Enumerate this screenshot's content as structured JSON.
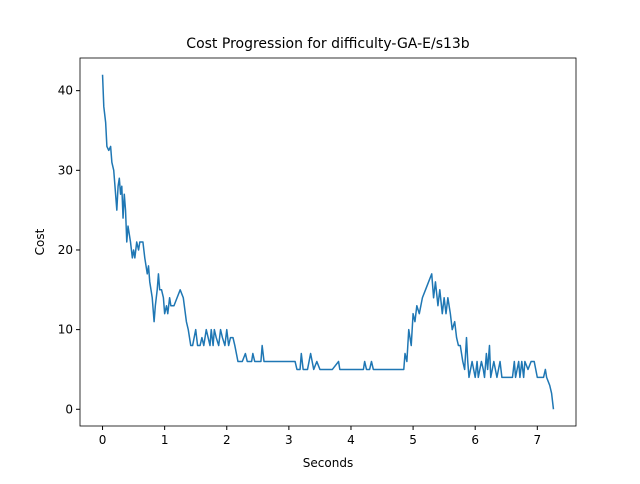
{
  "chart_data": {
    "type": "line",
    "title": "Cost Progression for difficulty-GA-E/s13b",
    "x_label": "Seconds",
    "y_label": "Cost",
    "x": [
      0,
      0.02,
      0.05,
      0.07,
      0.1,
      0.13,
      0.15,
      0.18,
      0.2,
      0.23,
      0.25,
      0.27,
      0.29,
      0.31,
      0.33,
      0.35,
      0.37,
      0.39,
      0.41,
      0.43,
      0.45,
      0.48,
      0.5,
      0.52,
      0.55,
      0.58,
      0.6,
      0.65,
      0.68,
      0.7,
      0.72,
      0.74,
      0.76,
      0.78,
      0.8,
      0.83,
      0.85,
      0.88,
      0.9,
      0.92,
      0.95,
      0.98,
      1.0,
      1.03,
      1.05,
      1.08,
      1.1,
      1.15,
      1.2,
      1.25,
      1.3,
      1.35,
      1.38,
      1.42,
      1.45,
      1.5,
      1.53,
      1.57,
      1.6,
      1.63,
      1.67,
      1.7,
      1.73,
      1.75,
      1.78,
      1.8,
      1.83,
      1.87,
      1.9,
      1.93,
      1.97,
      2.0,
      2.03,
      2.06,
      2.1,
      2.13,
      2.18,
      2.25,
      2.3,
      2.33,
      2.4,
      2.42,
      2.45,
      2.55,
      2.57,
      2.6,
      3.1,
      3.13,
      3.18,
      3.2,
      3.23,
      3.3,
      3.35,
      3.4,
      3.45,
      3.5,
      3.7,
      3.8,
      3.82,
      4.2,
      4.22,
      4.25,
      4.3,
      4.33,
      4.36,
      4.85,
      4.87,
      4.9,
      4.93,
      4.97,
      5.0,
      5.03,
      5.06,
      5.1,
      5.15,
      5.2,
      5.25,
      5.3,
      5.33,
      5.36,
      5.4,
      5.43,
      5.47,
      5.5,
      5.53,
      5.56,
      5.6,
      5.63,
      5.67,
      5.7,
      5.73,
      5.76,
      5.8,
      5.83,
      5.86,
      5.88,
      5.9,
      5.95,
      6.0,
      6.03,
      6.05,
      6.1,
      6.13,
      6.15,
      6.18,
      6.2,
      6.23,
      6.25,
      6.3,
      6.35,
      6.4,
      6.43,
      6.6,
      6.63,
      6.65,
      6.7,
      6.72,
      6.75,
      6.78,
      6.8,
      6.85,
      6.9,
      6.95,
      7.0,
      7.1,
      7.13,
      7.15,
      7.2,
      7.23,
      7.26
    ],
    "series": [
      {
        "name": "Cost",
        "color": "#1f77b4",
        "values": [
          42,
          38,
          36,
          33,
          32.5,
          33,
          31,
          30,
          28,
          25,
          28,
          29,
          27,
          28,
          24,
          27,
          25,
          21,
          23,
          22,
          21,
          19,
          20,
          19,
          21,
          20,
          21,
          21,
          19,
          18,
          17,
          18,
          16,
          15,
          14,
          11,
          13,
          15,
          17,
          15,
          15,
          14,
          12,
          13,
          12,
          14,
          13,
          13,
          14,
          15,
          14,
          11,
          10,
          8,
          8,
          10,
          8,
          8,
          9,
          8,
          10,
          9,
          8,
          10,
          8,
          10,
          9,
          8,
          10,
          9,
          8,
          10,
          8,
          9,
          9,
          8,
          6,
          6,
          7,
          6,
          6,
          7,
          6,
          6,
          8,
          6,
          6,
          5,
          5,
          7,
          5,
          5,
          7,
          5,
          6,
          5,
          5,
          6,
          5,
          5,
          6,
          5,
          5,
          6,
          5,
          5,
          7,
          6,
          10,
          8,
          12,
          11,
          13,
          12,
          14,
          15,
          16,
          17,
          14,
          16,
          13,
          15,
          12,
          14,
          12,
          14,
          12,
          10,
          11,
          9,
          8,
          8,
          6,
          5,
          9,
          6,
          4,
          6,
          4,
          6,
          4,
          6,
          5,
          4,
          7,
          5,
          8,
          4,
          6,
          4,
          6,
          4,
          4,
          6,
          4,
          6,
          4,
          6,
          4,
          6,
          5,
          6,
          6,
          4,
          4,
          5,
          4,
          3,
          2,
          0
        ]
      }
    ],
    "xlim": [
      -0.363,
      7.623
    ],
    "ylim": [
      -2.1,
      44.1
    ],
    "xticks": [
      0,
      1,
      2,
      3,
      4,
      5,
      6,
      7
    ],
    "yticks": [
      0,
      10,
      20,
      30,
      40
    ],
    "grid": false
  }
}
